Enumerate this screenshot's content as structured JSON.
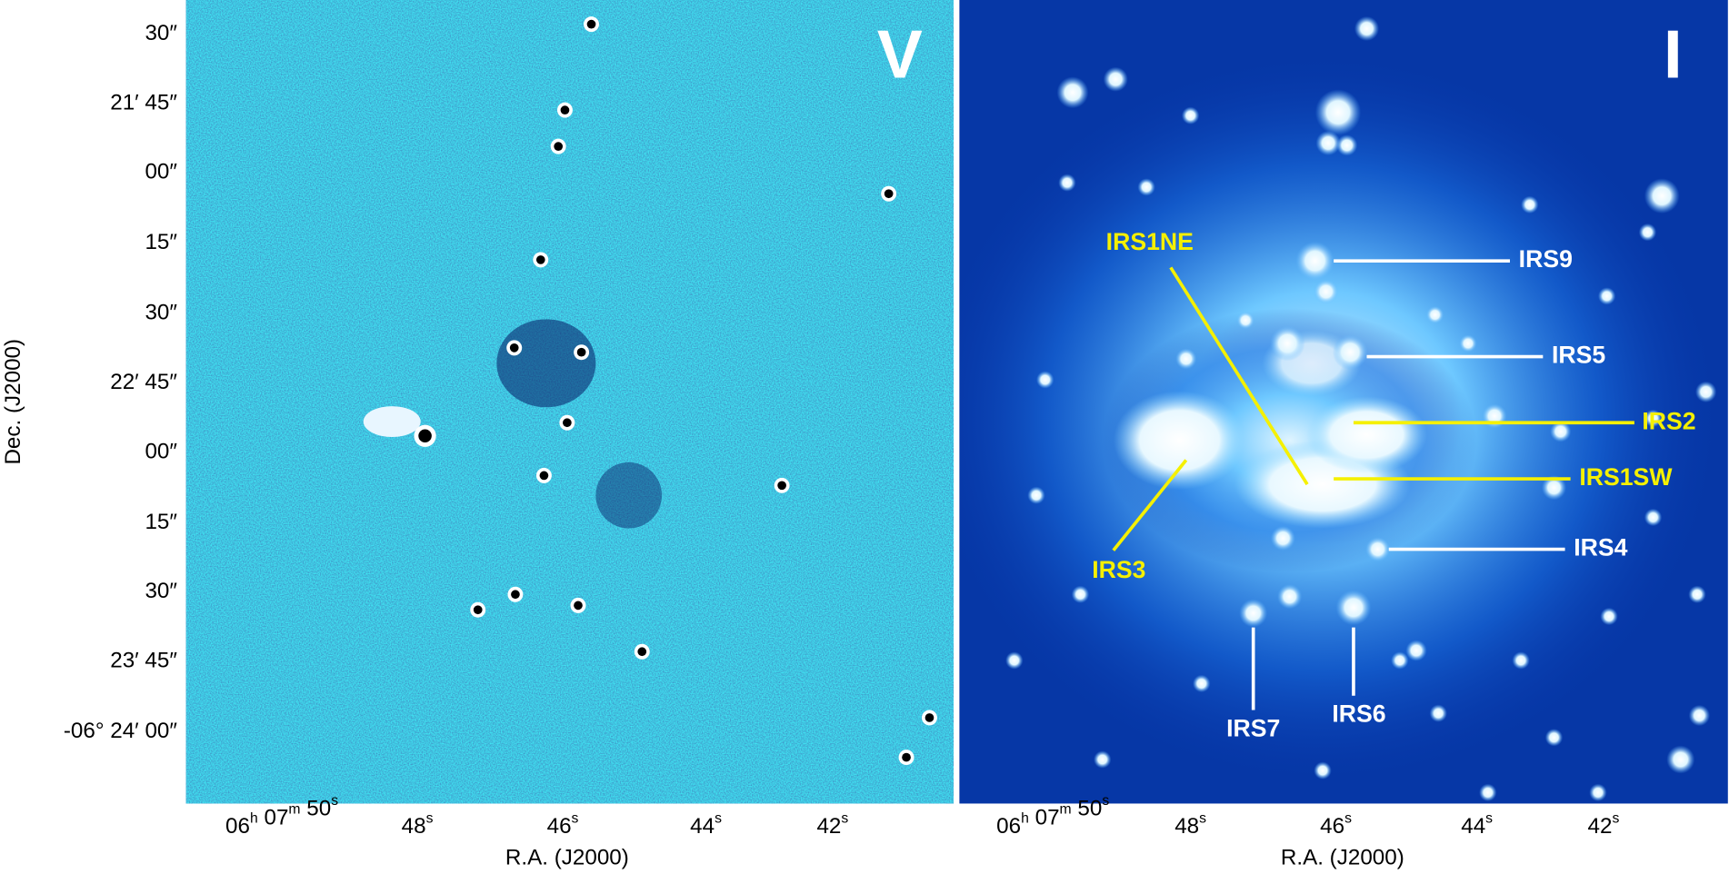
{
  "panels": [
    {
      "label": "V"
    },
    {
      "label": "I"
    }
  ],
  "dec_axis": {
    "title": "Dec. (J2000)",
    "ticks": [
      "30″",
      "21′ 45″",
      "00″",
      "15″",
      "30″",
      "22′ 45″",
      "00″",
      "15″",
      "30″",
      "23′ 45″",
      "-06° 24′ 00″"
    ]
  },
  "ra_axis": {
    "title": "R.A. (J2000)",
    "ticks": [
      [
        [
          "06",
          "h"
        ],
        [
          " 07",
          "m"
        ],
        [
          " 50",
          "s"
        ]
      ],
      [
        [
          "48",
          "s"
        ]
      ],
      [
        [
          "46",
          "s"
        ]
      ],
      [
        [
          "44",
          "s"
        ]
      ],
      [
        [
          "42",
          "s"
        ]
      ]
    ]
  },
  "annotations": [
    {
      "text": "IRS9",
      "color": "white"
    },
    {
      "text": "IRS5",
      "color": "white"
    },
    {
      "text": "IRS2",
      "color": "yellow"
    },
    {
      "text": "IRS1SW",
      "color": "yellow"
    },
    {
      "text": "IRS4",
      "color": "white"
    },
    {
      "text": "IRS1NE",
      "color": "yellow"
    },
    {
      "text": "IRS3",
      "color": "yellow"
    },
    {
      "text": "IRS7",
      "color": "white"
    },
    {
      "text": "IRS6",
      "color": "white"
    }
  ]
}
